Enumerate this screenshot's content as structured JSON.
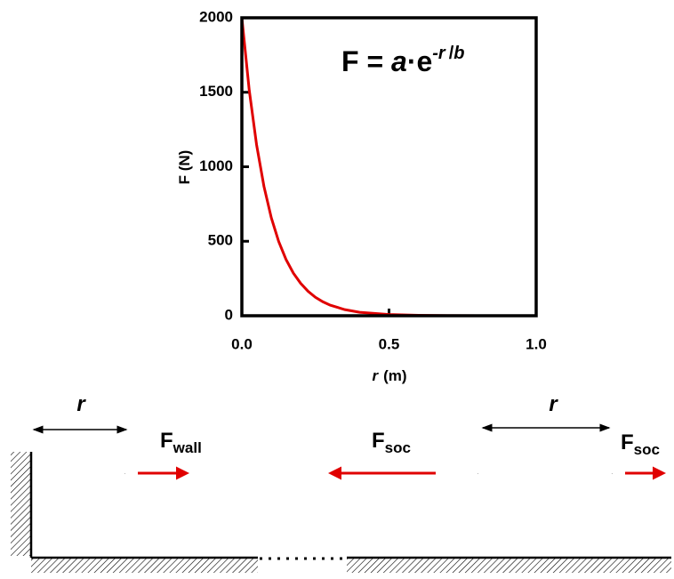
{
  "chart_data": {
    "type": "line",
    "ylabel": "F (N)",
    "xlabel": {
      "var": "r",
      "unit": "(m)"
    },
    "equation": {
      "lhs": "F = ",
      "a": "a",
      "dot": "·",
      "e": "e",
      "exp_r": "-r",
      "exp_slash": "/",
      "exp_b": "b"
    },
    "x": [
      0,
      0.025,
      0.05,
      0.075,
      0.1,
      0.125,
      0.15,
      0.175,
      0.2,
      0.225,
      0.25,
      0.275,
      0.3,
      0.35,
      0.4,
      0.5,
      0.6,
      0.7,
      0.8,
      0.9,
      1.0
    ],
    "values": [
      2000,
      1515,
      1148,
      869,
      658,
      499,
      378,
      286,
      217,
      164,
      124,
      94,
      71,
      41,
      23,
      8,
      3,
      1,
      0,
      0,
      0
    ],
    "color": "#e00000",
    "xlim": [
      0,
      1
    ],
    "ylim": [
      0,
      2000
    ],
    "xticks": [
      {
        "value": 0,
        "label": "0.0"
      },
      0.5,
      {
        "value": 1,
        "label": "1.0"
      }
    ],
    "yticks": [
      0,
      500,
      1000,
      1500,
      2000
    ]
  },
  "diagram": {
    "distance_left": "r",
    "distance_right": "r",
    "force_wall": {
      "base": "F",
      "sub": "wall"
    },
    "force_soc_left": {
      "base": "F",
      "sub": "soc"
    },
    "force_soc_right": {
      "base": "F",
      "sub": "soc"
    }
  }
}
